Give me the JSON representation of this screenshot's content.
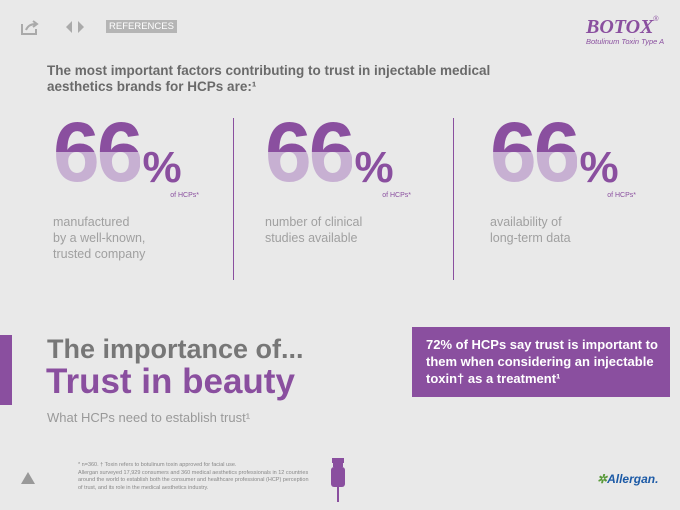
{
  "toolbar": {
    "references": "REFERENCES"
  },
  "brand": {
    "name": "BOTOX",
    "mark": "®",
    "subtitle": "Botulinum Toxin Type A"
  },
  "heading": "The most important factors contributing to trust in injectable medical aesthetics brands for HCPs are:¹",
  "stats": [
    {
      "number": "66",
      "unit": "%",
      "note": "of HCPs*",
      "lines": [
        "manufactured",
        "by a well-known,",
        "trusted company"
      ]
    },
    {
      "number": "66",
      "unit": "%",
      "note": "of HCPs*",
      "lines": [
        "number of clinical",
        "studies available"
      ]
    },
    {
      "number": "66",
      "unit": "%",
      "note": "of HCPs*",
      "lines": [
        "availability of",
        "long-term data"
      ]
    }
  ],
  "section": {
    "kicker": "The importance of...",
    "title": "Trust in beauty",
    "subtitle": "What HCPs need to establish trust¹"
  },
  "callout": "72% of HCPs say trust is important to them when considering an injectable toxin† as a treatment¹",
  "footnote": [
    "* n=360. † Toxin refers to botulinum toxin approved for facial use.",
    "Allergan surveyed 17,929 consumers and 360 medical aesthetics professionals in 12 countries",
    "around the world to establish both the consumer and healthcare professional (HCP) perception",
    "of trust, and its role in the medical aesthetics industry."
  ],
  "company": "Allergan."
}
